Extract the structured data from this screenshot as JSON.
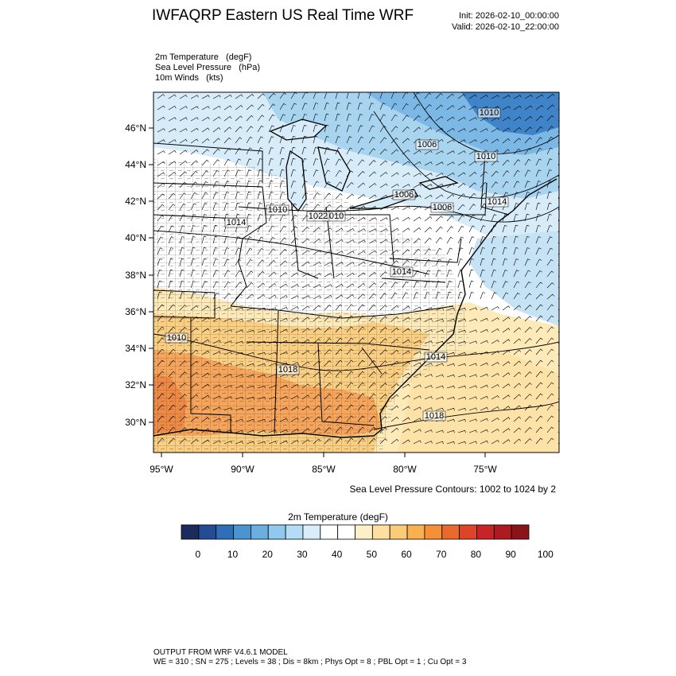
{
  "header": {
    "title": "IWFAQRP Eastern US Real Time WRF",
    "init": "Init: 2026-02-10_00:00:00",
    "valid": "Valid: 2026-02-10_22:00:00"
  },
  "fields": [
    "2m Temperature   (degF)",
    "Sea Level Pressure   (hPa)",
    "10m Winds   (kts)"
  ],
  "map": {
    "lat_labels": [
      "46°N",
      "44°N",
      "42°N",
      "40°N",
      "38°N",
      "36°N",
      "34°N",
      "32°N",
      "30°N"
    ],
    "lon_labels": [
      "95°W",
      "90°W",
      "85°W",
      "80°W",
      "75°W"
    ],
    "pressure_labels": [
      "1010",
      "1006",
      "1010",
      "1006",
      "1006",
      "1014",
      "1014",
      "1010",
      "1010",
      "1014",
      "1010",
      "1014",
      "1018",
      "1018",
      "1022"
    ],
    "contour_note": "Sea Level Pressure Contours: 1002 to 1024 by 2"
  },
  "colorbar": {
    "title": "2m Temperature  (degF)",
    "colors": [
      "#1b2b5e",
      "#234c94",
      "#2f6fba",
      "#4a94d0",
      "#6aafe0",
      "#90c8ee",
      "#b5dcf5",
      "#d9eefa",
      "#ffffff",
      "#ffffff",
      "#fdf0c8",
      "#fde0a0",
      "#fccb78",
      "#fab04f",
      "#f59036",
      "#ea6a2e",
      "#de4428",
      "#c82428",
      "#ad1a20",
      "#8c1419"
    ],
    "labels": [
      "0",
      "10",
      "20",
      "30",
      "40",
      "50",
      "60",
      "70",
      "80",
      "90",
      "100"
    ]
  },
  "footer": {
    "line1": "OUTPUT FROM WRF V4.6.1 MODEL",
    "line2": "WE = 310 ; SN = 275 ; Levels = 38 ; Dis = 8km ; Phys Opt = 8 ; PBL Opt = 1 ; Cu Opt = 3"
  }
}
